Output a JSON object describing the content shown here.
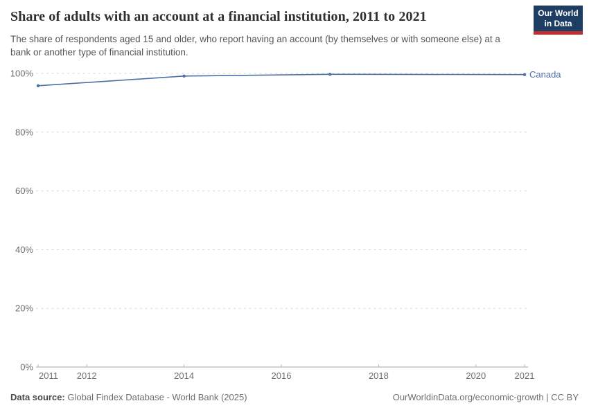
{
  "header": {
    "title": "Share of adults with an account at a financial institution, 2011 to 2021",
    "subtitle": "The share of respondents aged 15 and older, who report having an account (by themselves or with someone else) at a bank or another type of financial institution.",
    "logo": {
      "line1": "Our World",
      "line2": "in Data"
    }
  },
  "chart_data": {
    "type": "line",
    "title": "Share of adults with an account at a financial institution, 2011 to 2021",
    "x": [
      2011,
      2014,
      2017,
      2021
    ],
    "series": [
      {
        "name": "Canada",
        "color": "#4c6fa5",
        "values": [
          95.8,
          99.1,
          99.7,
          99.6
        ]
      }
    ],
    "xlim": [
      2011,
      2021
    ],
    "ylim": [
      0,
      100
    ],
    "x_ticks": [
      2011,
      2012,
      2014,
      2016,
      2018,
      2020,
      2021
    ],
    "y_ticks": [
      0,
      20,
      40,
      60,
      80,
      100
    ],
    "y_tick_suffix": "%",
    "xlabel": "",
    "ylabel": "",
    "grid": "horizontal-dashed",
    "legend_position": "line-end-label"
  },
  "footer": {
    "source_label": "Data source:",
    "source_value": "Global Findex Database - World Bank (2025)",
    "citation": "OurWorldinData.org/economic-growth | CC BY"
  },
  "colors": {
    "line": "#4c6fa5",
    "grid": "#d6d6d6",
    "axis": "#a6a6a6",
    "tick": "#b9b9b9",
    "tick_label": "#6e6e6e",
    "logo_bg": "#1d3d63",
    "logo_stripe": "#be2e2e"
  }
}
